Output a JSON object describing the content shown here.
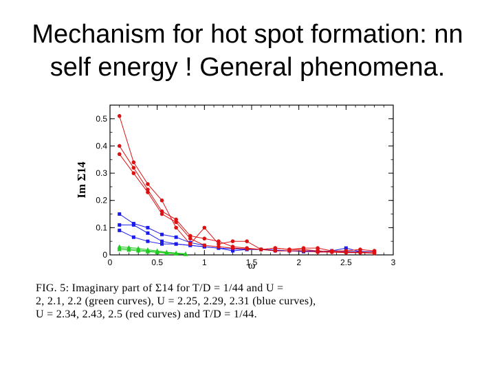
{
  "slide": {
    "title_line1": "Mechanism for hot spot formation: nn",
    "title_line2": "self energy ! General phenomena."
  },
  "caption": {
    "line1": "FIG. 5: Imaginary part of Σ14 for T/D = 1/44 and U =",
    "line2": "2, 2.1, 2.2 (green curves), U = 2.25, 2.29, 2.31 (blue curves),",
    "line3": "U = 2.34, 2.43, 2.5 (red curves) and T/D = 1/44."
  },
  "chart_data": {
    "type": "line",
    "xlabel": "ω",
    "ylabel": "Im Σ14",
    "xlim": [
      0,
      3
    ],
    "ylim": [
      0,
      0.55
    ],
    "x_ticks": [
      "0",
      "0.5",
      "1",
      "1.5",
      "2",
      "2.5",
      "3"
    ],
    "y_ticks": [
      "0",
      "0.1",
      "0.2",
      "0.3",
      "0.4",
      "0.5"
    ],
    "grid": false,
    "colors": {
      "green": "#22cc22",
      "blue": "#1a1aee",
      "red": "#dd1111"
    },
    "series": [
      {
        "group": "green",
        "x": [
          0.1,
          0.2,
          0.3,
          0.4,
          0.5,
          0.6,
          0.7,
          0.8
        ],
        "y": [
          0.02,
          0.018,
          0.015,
          0.012,
          0.009,
          0.006,
          0.004,
          0.002
        ]
      },
      {
        "group": "green",
        "x": [
          0.1,
          0.2,
          0.3,
          0.4,
          0.5,
          0.6,
          0.7,
          0.8
        ],
        "y": [
          0.025,
          0.022,
          0.019,
          0.015,
          0.011,
          0.008,
          0.005,
          0.003
        ]
      },
      {
        "group": "green",
        "x": [
          0.1,
          0.2,
          0.3,
          0.4,
          0.5,
          0.6,
          0.7,
          0.8
        ],
        "y": [
          0.03,
          0.027,
          0.024,
          0.019,
          0.015,
          0.01,
          0.007,
          0.004
        ]
      },
      {
        "group": "blue",
        "x": [
          0.1,
          0.25,
          0.4,
          0.55,
          0.7,
          0.85,
          1.0,
          1.15,
          1.3,
          1.45,
          1.6,
          1.75,
          1.9,
          2.05,
          2.2,
          2.35,
          2.5,
          2.65,
          2.8
        ],
        "y": [
          0.09,
          0.065,
          0.05,
          0.04,
          0.04,
          0.035,
          0.03,
          0.025,
          0.022,
          0.02,
          0.02,
          0.018,
          0.015,
          0.015,
          0.015,
          0.012,
          0.012,
          0.012,
          0.012
        ]
      },
      {
        "group": "blue",
        "x": [
          0.1,
          0.25,
          0.4,
          0.55,
          0.7,
          0.85,
          1.0,
          1.15,
          1.3,
          1.45,
          1.6,
          1.75,
          1.9,
          2.05,
          2.2,
          2.35,
          2.5,
          2.65,
          2.8
        ],
        "y": [
          0.11,
          0.11,
          0.08,
          0.05,
          0.04,
          0.035,
          0.03,
          0.025,
          0.015,
          0.02,
          0.02,
          0.015,
          0.015,
          0.012,
          0.012,
          0.015,
          0.025,
          0.012,
          0.01
        ]
      },
      {
        "group": "blue",
        "x": [
          0.1,
          0.25,
          0.4,
          0.55,
          0.7,
          0.85,
          1.0
        ],
        "y": [
          0.15,
          0.115,
          0.1,
          0.075,
          0.065,
          0.045,
          0.035
        ]
      },
      {
        "group": "red",
        "x": [
          0.1,
          0.25,
          0.4,
          0.55,
          0.7,
          0.85,
          1.0,
          1.15,
          1.3,
          1.45,
          1.6,
          1.75,
          1.9,
          2.05,
          2.2,
          2.35,
          2.5,
          2.65,
          2.8
        ],
        "y": [
          0.37,
          0.3,
          0.23,
          0.15,
          0.12,
          0.06,
          0.035,
          0.03,
          0.025,
          0.022,
          0.02,
          0.015,
          0.015,
          0.015,
          0.01,
          0.01,
          0.008,
          0.008,
          0.006
        ]
      },
      {
        "group": "red",
        "x": [
          0.1,
          0.25,
          0.4,
          0.55,
          0.7,
          0.85,
          1.0,
          1.15,
          1.3,
          1.45,
          1.6,
          1.75,
          1.9,
          2.05,
          2.2,
          2.35,
          2.5,
          2.65,
          2.8
        ],
        "y": [
          0.4,
          0.32,
          0.24,
          0.16,
          0.13,
          0.07,
          0.06,
          0.05,
          0.03,
          0.025,
          0.02,
          0.025,
          0.02,
          0.02,
          0.015,
          0.012,
          0.01,
          0.01,
          0.01
        ]
      },
      {
        "group": "red",
        "x": [
          0.1,
          0.25,
          0.4,
          0.55,
          0.7,
          0.85,
          1.0,
          1.15,
          1.3,
          1.45,
          1.6,
          1.75,
          1.9,
          2.05,
          2.2,
          2.35,
          2.5,
          2.65,
          2.8
        ],
        "y": [
          0.51,
          0.34,
          0.26,
          0.2,
          0.1,
          0.04,
          0.1,
          0.04,
          0.05,
          0.05,
          0.02,
          0.025,
          0.02,
          0.025,
          0.025,
          0.015,
          0.015,
          0.02,
          0.015
        ]
      }
    ]
  }
}
